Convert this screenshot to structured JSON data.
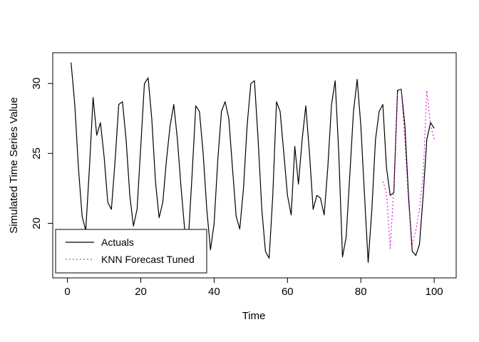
{
  "window": {
    "background": "#ffffff"
  },
  "chart_data": {
    "type": "line",
    "title": "",
    "xlabel": "Time",
    "ylabel": "Simulated Time Series Value",
    "xlim": [
      -4,
      106
    ],
    "ylim": [
      16.1,
      32.2
    ],
    "xticks": [
      0,
      20,
      40,
      60,
      80,
      100
    ],
    "yticks": [
      20,
      25,
      30
    ],
    "grid": false,
    "frame_color": "#000000",
    "legend": {
      "position": "bottom-left",
      "entries": [
        {
          "label": "Actuals",
          "color": "#000000",
          "style": "solid"
        },
        {
          "label": "KNN Forecast Tuned",
          "color": "#CC00CC",
          "style": "dotted"
        }
      ]
    },
    "series": [
      {
        "name": "Actuals",
        "color": "#000000",
        "style": "solid",
        "x": [
          1,
          2,
          3,
          4,
          5,
          6,
          7,
          8,
          9,
          10,
          11,
          12,
          13,
          14,
          15,
          16,
          17,
          18,
          19,
          20,
          21,
          22,
          23,
          24,
          25,
          26,
          27,
          28,
          29,
          30,
          31,
          32,
          33,
          34,
          35,
          36,
          37,
          38,
          39,
          40,
          41,
          42,
          43,
          44,
          45,
          46,
          47,
          48,
          49,
          50,
          51,
          52,
          53,
          54,
          55,
          56,
          57,
          58,
          59,
          60,
          61,
          62,
          63,
          64,
          65,
          66,
          67,
          68,
          69,
          70,
          71,
          72,
          73,
          74,
          75,
          76,
          77,
          78,
          79,
          80,
          81,
          82,
          83,
          84,
          85,
          86,
          87,
          88,
          89,
          90,
          91,
          92,
          93,
          94,
          95,
          96,
          97,
          98,
          99,
          100
        ],
        "y": [
          31.5,
          28.5,
          24.0,
          20.5,
          19.5,
          24.0,
          29.0,
          26.3,
          27.2,
          24.8,
          21.5,
          21.0,
          24.5,
          28.5,
          28.7,
          26.0,
          22.0,
          19.8,
          21.0,
          25.5,
          30.0,
          30.4,
          27.5,
          23.0,
          20.4,
          21.5,
          24.5,
          27.0,
          28.5,
          26.0,
          22.5,
          19.5,
          19.0,
          23.5,
          28.4,
          28.0,
          25.0,
          21.0,
          18.1,
          20.0,
          24.5,
          28.0,
          28.7,
          27.5,
          24.0,
          20.5,
          19.6,
          22.5,
          27.0,
          30.0,
          30.2,
          26.0,
          21.0,
          18.0,
          17.5,
          22.0,
          28.7,
          28.0,
          25.0,
          22.0,
          20.6,
          25.5,
          22.8,
          26.0,
          28.4,
          25.0,
          21.0,
          22.0,
          21.8,
          20.6,
          24.0,
          28.5,
          30.2,
          25.0,
          17.6,
          19.0,
          23.5,
          28.0,
          30.3,
          27.0,
          22.0,
          17.2,
          21.0,
          26.0,
          28.0,
          28.5,
          24.0,
          22.0,
          22.2,
          29.5,
          29.6,
          27.0,
          22.0,
          18.0,
          17.7,
          18.5,
          22.0,
          26.0,
          27.2,
          26.8
        ]
      },
      {
        "name": "KNN Forecast Tuned",
        "color": "#CC00CC",
        "style": "dotted",
        "x": [
          86,
          87,
          88,
          89,
          90,
          91,
          92,
          93,
          94,
          95,
          96,
          97,
          98,
          99,
          100
        ],
        "y": [
          23.0,
          22.2,
          18.2,
          22.5,
          29.4,
          29.6,
          26.0,
          21.5,
          18.5,
          19.5,
          21.0,
          23.5,
          29.5,
          27.0,
          26.0
        ]
      }
    ]
  }
}
